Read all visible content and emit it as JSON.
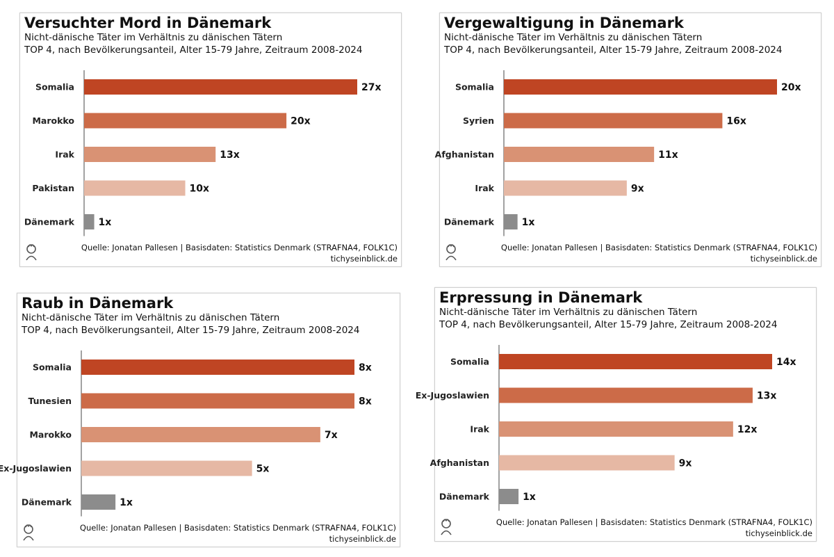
{
  "chart_data": [
    {
      "type": "bar",
      "title": "Versuchter Mord in Dänemark",
      "subtitle_line1": "Nicht-dänische Täter im Verhältnis zu dänischen Tätern",
      "subtitle_line2": "TOP 4, nach Bevölkerungsanteil, Alter 15-79 Jahre, Zeitraum 2008-2024",
      "categories": [
        "Somalia",
        "Marokko",
        "Irak",
        "Pakistan",
        "Dänemark"
      ],
      "values": [
        27,
        20,
        13,
        10,
        1
      ],
      "value_labels": [
        "27x",
        "20x",
        "13x",
        "10x",
        "1x"
      ],
      "colors": [
        "#bf4523",
        "#cc6b48",
        "#d99274",
        "#e6b8a4",
        "#8c8c8c"
      ],
      "source": "Quelle: Jonatan Pallesen | Basisdaten: Statistics Denmark (STRAFNA4, FOLK1C)",
      "site": "tichyseinblick.de"
    },
    {
      "type": "bar",
      "title": "Vergewaltigung in Dänemark",
      "subtitle_line1": "Nicht-dänische Täter im Verhältnis zu dänischen Tätern",
      "subtitle_line2": "TOP 4, nach Bevölkerungsanteil, Alter 15-79 Jahre, Zeitraum 2008-2024",
      "categories": [
        "Somalia",
        "Syrien",
        "Afghanistan",
        "Irak",
        "Dänemark"
      ],
      "values": [
        20,
        16,
        11,
        9,
        1
      ],
      "value_labels": [
        "20x",
        "16x",
        "11x",
        "9x",
        "1x"
      ],
      "colors": [
        "#bf4523",
        "#cc6b48",
        "#d99274",
        "#e6b8a4",
        "#8c8c8c"
      ],
      "source": "Quelle: Jonatan Pallesen | Basisdaten: Statistics Denmark (STRAFNA4, FOLK1C)",
      "site": "tichyseinblick.de"
    },
    {
      "type": "bar",
      "title": "Raub in Dänemark",
      "subtitle_line1": "Nicht-dänische Täter im Verhältnis zu dänischen Tätern",
      "subtitle_line2": "TOP 4, nach Bevölkerungsanteil, Alter 15-79 Jahre, Zeitraum 2008-2024",
      "categories": [
        "Somalia",
        "Tunesien",
        "Marokko",
        "Ex-Jugoslawien",
        "Dänemark"
      ],
      "values": [
        8,
        8,
        7,
        5,
        1
      ],
      "value_labels": [
        "8x",
        "8x",
        "7x",
        "5x",
        "1x"
      ],
      "colors": [
        "#bf4523",
        "#cc6b48",
        "#d99274",
        "#e6b8a4",
        "#8c8c8c"
      ],
      "source": "Quelle: Jonatan Pallesen | Basisdaten: Statistics Denmark (STRAFNA4, FOLK1C)",
      "site": "tichyseinblick.de"
    },
    {
      "type": "bar",
      "title": "Erpressung in Dänemark",
      "subtitle_line1": "Nicht-dänische Täter im Verhältnis zu dänischen Tätern",
      "subtitle_line2": "TOP 4, nach Bevölkerungsanteil, Alter 15-79 Jahre, Zeitraum 2008-2024",
      "categories": [
        "Somalia",
        "Ex-Jugoslawien",
        "Irak",
        "Afghanistan",
        "Dänemark"
      ],
      "values": [
        14,
        13,
        12,
        9,
        1
      ],
      "value_labels": [
        "14x",
        "13x",
        "12x",
        "9x",
        "1x"
      ],
      "colors": [
        "#bf4523",
        "#cc6b48",
        "#d99274",
        "#e6b8a4",
        "#8c8c8c"
      ],
      "source": "Quelle: Jonatan Pallesen | Basisdaten: Statistics Denmark (STRAFNA4, FOLK1C)",
      "site": "tichyseinblick.de"
    }
  ]
}
